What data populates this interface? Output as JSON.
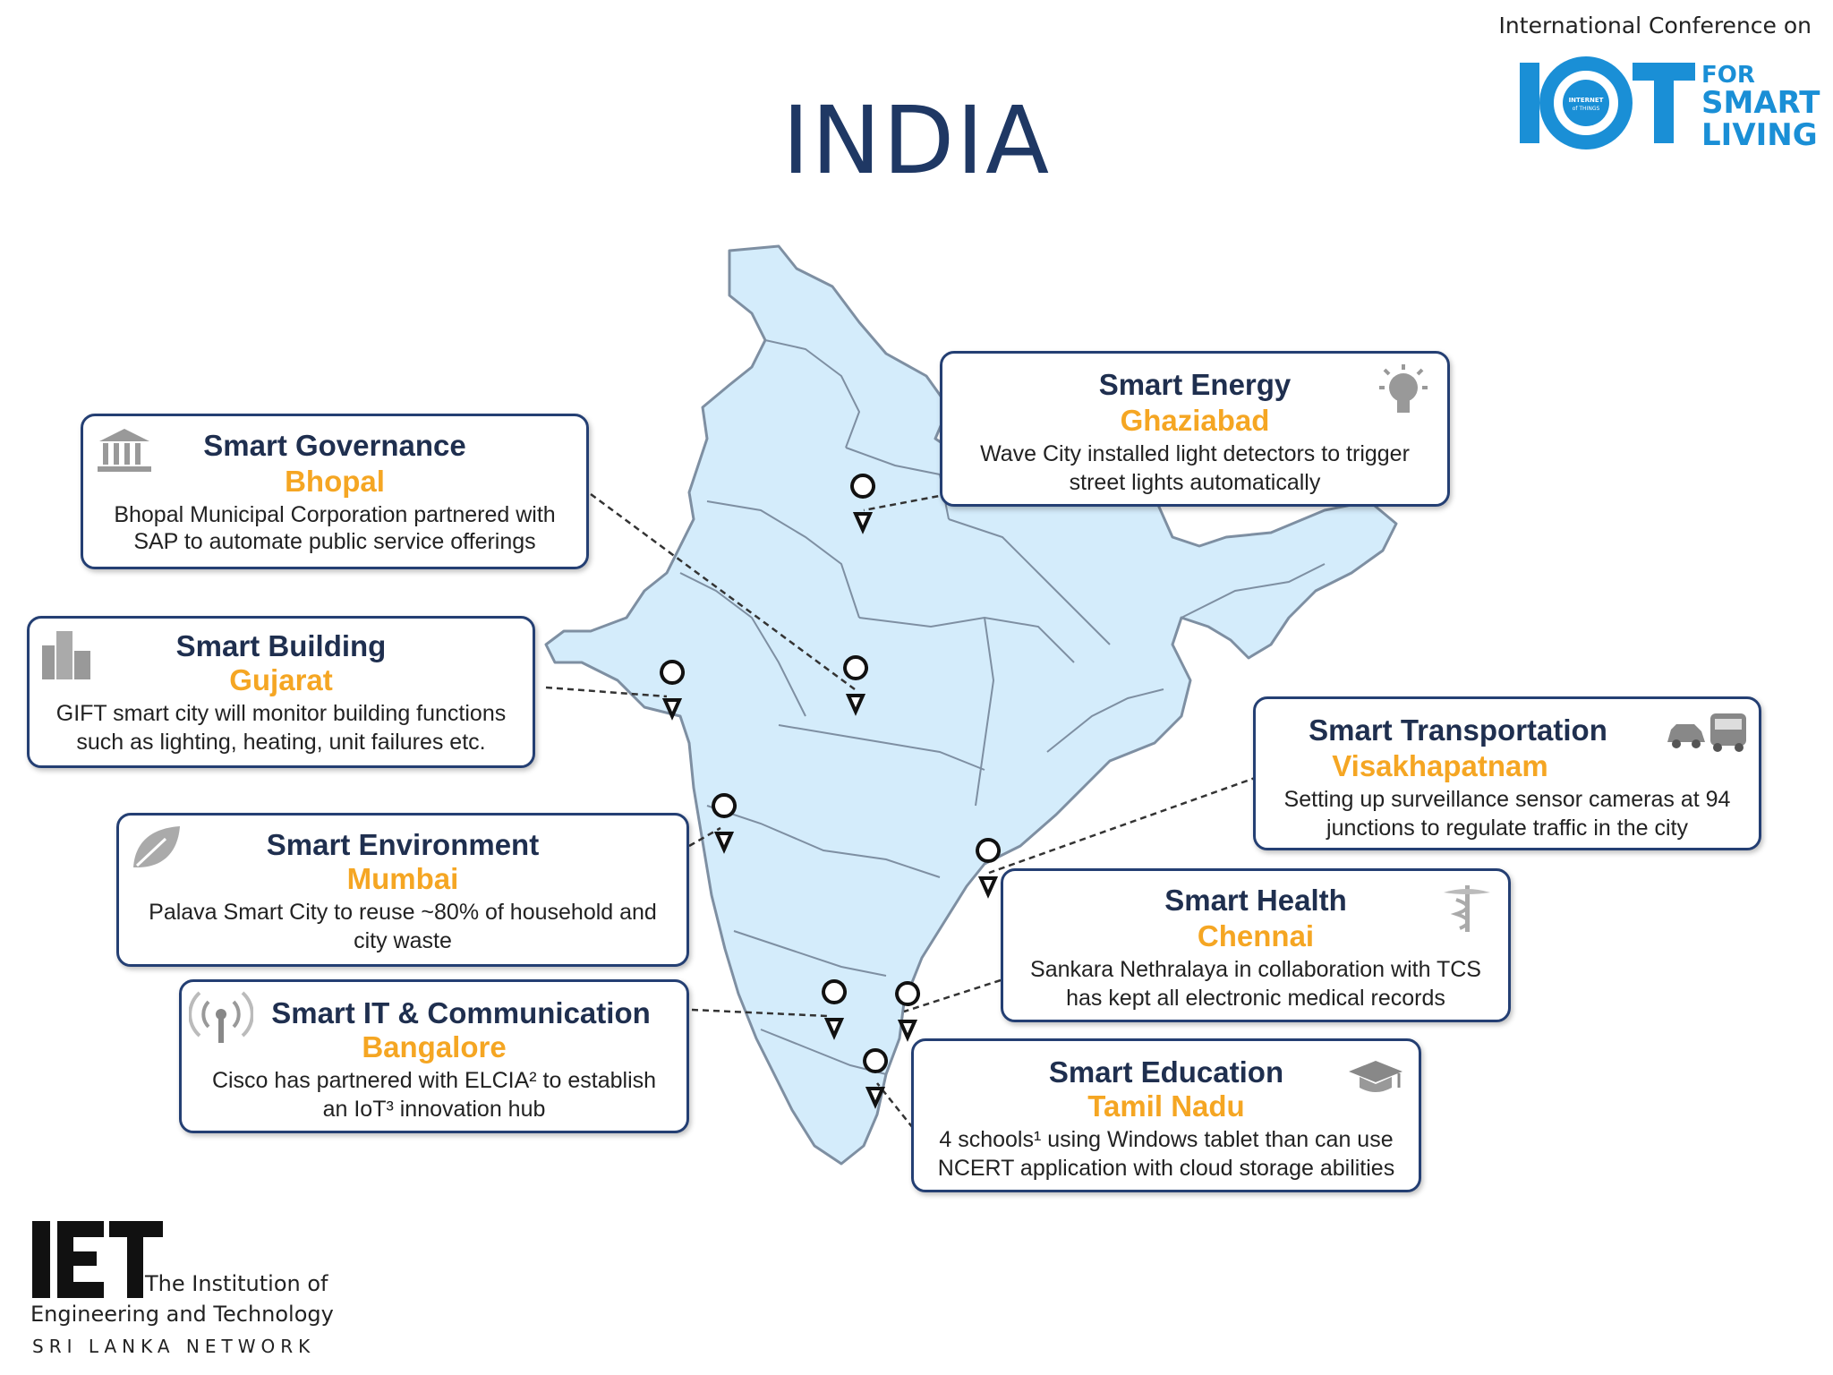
{
  "page_title": "INDIA",
  "conference": {
    "heading": "International Conference on",
    "logo_iot": "IOT",
    "logo_for": "FOR",
    "logo_smart": "SMART",
    "logo_living": "LIVING",
    "logo_inner": "The INTERNET of THINGS"
  },
  "institution": {
    "line1": "The Institution of",
    "line2": "Engineering and Technology",
    "line3": "SRI LANKA NETWORK",
    "logo": "IET"
  },
  "colors": {
    "map_fill": "#d4ecfb",
    "map_border": "#7e8fa2",
    "card_border": "#243f73",
    "accent": "#f5a623",
    "title": "#1f3864",
    "logo_blue": "#1a8fd6"
  },
  "cards": {
    "governance": {
      "title": "Smart Governance",
      "location": "Bhopal",
      "line1": "Bhopal Municipal Corporation partnered with",
      "line2": "SAP to automate public service offerings",
      "icon": "building-columns-icon"
    },
    "building": {
      "title": "Smart Building",
      "location": "Gujarat",
      "line1": "GIFT smart city will monitor building functions",
      "line2": "such as lighting, heating, unit failures etc.",
      "icon": "skyscraper-icon"
    },
    "environment": {
      "title": "Smart Environment",
      "location": "Mumbai",
      "line1": "Palava Smart City to reuse ~80% of household and",
      "line2": "city waste",
      "icon": "leaf-icon"
    },
    "it": {
      "title": "Smart IT & Communication",
      "location": "Bangalore",
      "line1": "Cisco has partnered with ELCIA² to establish",
      "line2": "an IoT³ innovation hub",
      "icon": "antenna-icon"
    },
    "energy": {
      "title": "Smart Energy",
      "location": "Ghaziabad",
      "line1": "Wave City installed light detectors to trigger",
      "line2": "street lights automatically",
      "icon": "lightbulb-icon"
    },
    "transport": {
      "title": "Smart Transportation",
      "location": "Visakhapatnam",
      "line1": "Setting up surveillance sensor cameras at 94",
      "line2": "junctions to regulate traffic in the city",
      "icon": "car-bus-icon"
    },
    "health": {
      "title": "Smart Health",
      "location": "Chennai",
      "line1": "Sankara Nethralaya in collaboration with TCS",
      "line2": "has kept all electronic medical records",
      "icon": "caduceus-icon"
    },
    "education": {
      "title": "Smart Education",
      "location": "Tamil Nadu",
      "line1": "4 schools¹ using Windows tablet than can use",
      "line2": "NCERT application with cloud storage abilities",
      "icon": "graduation-cap-icon"
    }
  }
}
